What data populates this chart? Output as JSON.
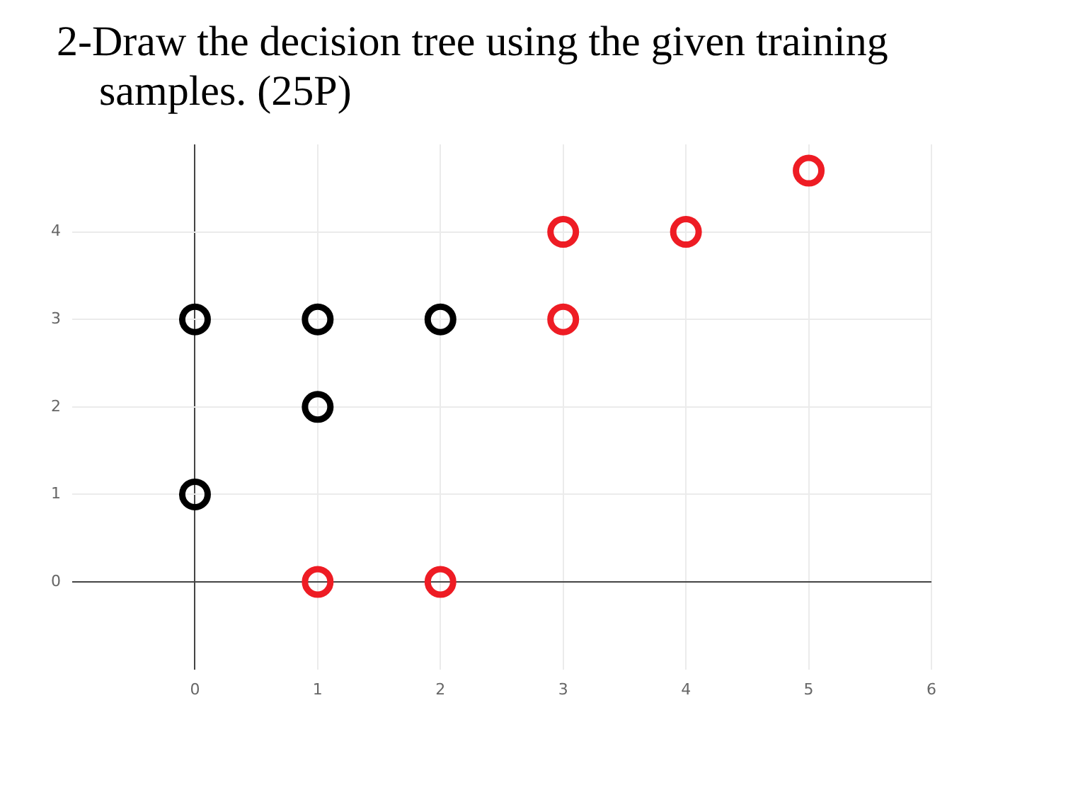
{
  "chart_data": {
    "type": "scatter",
    "title": "2-Draw the decision tree using the given training samples. (25P)",
    "series": [
      {
        "color": "#000000",
        "x": [
          0,
          1,
          2,
          1,
          0
        ],
        "values": [
          3,
          3,
          3,
          2,
          1
        ]
      },
      {
        "color": "#ee1c24",
        "x": [
          1,
          2,
          3,
          3,
          4,
          5
        ],
        "values": [
          0,
          0,
          3,
          4,
          4,
          4.7
        ]
      }
    ],
    "xlim": [
      -1,
      6
    ],
    "xticks": [
      0,
      1,
      2,
      3,
      4,
      5,
      6
    ],
    "ylim": [
      -1,
      5
    ],
    "yticks": [
      0,
      1,
      2,
      3,
      4
    ],
    "grid": true,
    "marker": "circle",
    "legend": false
  }
}
